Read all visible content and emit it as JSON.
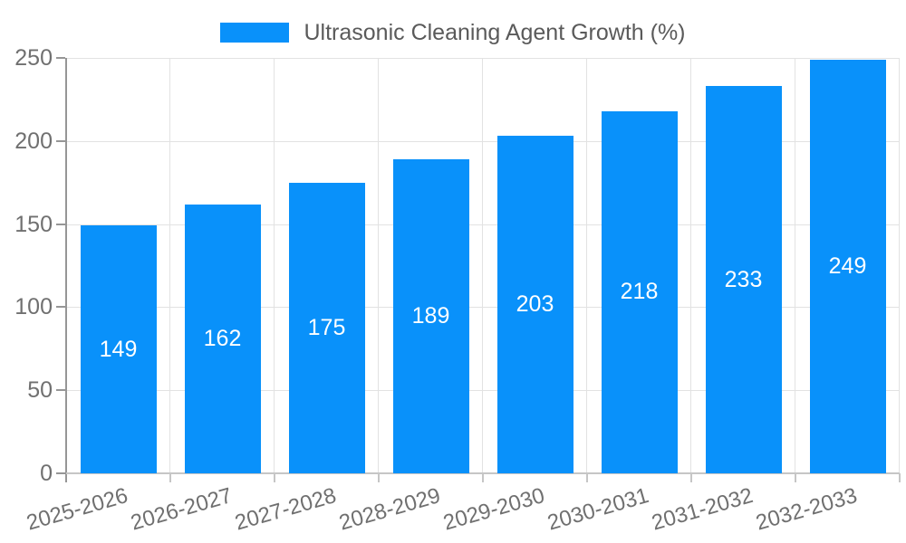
{
  "chart_data": {
    "type": "bar",
    "title": "Ultrasonic Cleaning Agent Growth (%)",
    "categories": [
      "2025-2026",
      "2026-2027",
      "2027-2028",
      "2028-2029",
      "2029-2030",
      "2030-2031",
      "2031-2032",
      "2032-2033"
    ],
    "values": [
      149,
      162,
      175,
      189,
      203,
      218,
      233,
      249
    ],
    "xlabel": "",
    "ylabel": "",
    "ylim": [
      0,
      250
    ],
    "yticks": [
      0,
      50,
      100,
      150,
      200,
      250
    ],
    "grid": true,
    "legend_position": "top-center",
    "value_labels": "inside-center",
    "colors": {
      "bar": "#0991fa",
      "value_label": "#ffffff",
      "axis_label": "#707070",
      "legend_text": "#5a5a5a",
      "gridline": "#e2e2e2",
      "y_axis_line": "#969696",
      "x_axis_line": "#c6c6c6"
    }
  }
}
